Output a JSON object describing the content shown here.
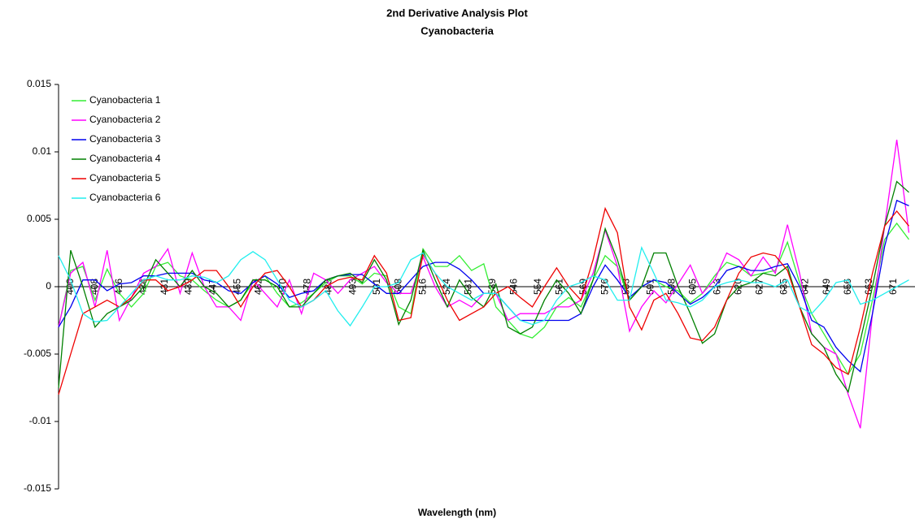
{
  "chart_data": {
    "type": "line",
    "title": "2nd Derivative Analysis Plot",
    "subtitle": "Cyanobacteria",
    "x_label": "Wavelength (nm)",
    "x": [
      396,
      400,
      404,
      408,
      412,
      416,
      420,
      424,
      428,
      432,
      436,
      440,
      444,
      448,
      452,
      456,
      460,
      464,
      468,
      472,
      476,
      480,
      484,
      488,
      492,
      496,
      500,
      504,
      508,
      512,
      516,
      520,
      524,
      528,
      532,
      536,
      540,
      544,
      548,
      552,
      556,
      560,
      564,
      568,
      572,
      576,
      580,
      584,
      588,
      592,
      596,
      600,
      604,
      608,
      612,
      616,
      620,
      624,
      628,
      632,
      636,
      640,
      644,
      648,
      652,
      656,
      660,
      664,
      668,
      672,
      676
    ],
    "xlim": [
      396,
      678
    ],
    "xticks": [
      400,
      408,
      416,
      424,
      431,
      439,
      447,
      455,
      462,
      470,
      478,
      485,
      493,
      501,
      508,
      516,
      524,
      531,
      539,
      546,
      554,
      561,
      569,
      576,
      583,
      591,
      598,
      605,
      613,
      620,
      627,
      635,
      642,
      649,
      656,
      663,
      671
    ],
    "ylim": [
      -0.015,
      0.015
    ],
    "yticks": [
      0.015,
      0.01,
      0.005,
      0,
      -0.005,
      -0.01,
      -0.015
    ],
    "legend": "upper left",
    "series": [
      {
        "name": "Cyanobacteria 1",
        "color": "#33ee33",
        "values": [
          -0.003,
          0.0012,
          0.0015,
          -0.001,
          0.0013,
          -0.0005,
          -0.0015,
          -0.0005,
          0.0015,
          0.0018,
          0.0008,
          0.0005,
          -0.0003,
          -0.001,
          -0.0015,
          -0.001,
          0.0003,
          0.0008,
          -0.0005,
          -0.0015,
          -0.0012,
          -0.0005,
          0.0003,
          0.0008,
          0.0008,
          0.0002,
          0.001,
          0.0008,
          -0.0015,
          -0.002,
          0.0028,
          0.0015,
          0.0015,
          0.0023,
          0.0012,
          0.0017,
          -0.0015,
          -0.0025,
          -0.0035,
          -0.0038,
          -0.003,
          -0.0015,
          -0.0008,
          -0.0015,
          0.0005,
          0.0023,
          0.0015,
          -0.001,
          0,
          0.0005,
          0,
          -0.0003,
          -0.0012,
          -0.0005,
          0.0008,
          0.0018,
          0.0015,
          0.0008,
          0.001,
          0.0012,
          0.0033,
          0.0003,
          -0.002,
          -0.0035,
          -0.005,
          -0.0065,
          -0.005,
          -0.001,
          0.0035,
          0.0047,
          0.0035
        ]
      },
      {
        "name": "Cyanobacteria 2",
        "color": "#ff00ff",
        "values": [
          -0.003,
          0.001,
          0.0018,
          -0.0015,
          0.0027,
          -0.0025,
          -0.0008,
          0.001,
          0.0015,
          0.0028,
          -0.0005,
          0.0025,
          0,
          -0.0015,
          -0.0015,
          -0.0025,
          0.0005,
          -0.0005,
          -0.0015,
          0.0005,
          -0.002,
          0.001,
          0.0005,
          -0.0005,
          0.0005,
          0.001,
          0.0015,
          0.0003,
          -0.0005,
          -0.0005,
          0.0022,
          0,
          -0.0015,
          -0.001,
          -0.0015,
          -0.0005,
          -0.0005,
          -0.0025,
          -0.002,
          -0.002,
          -0.002,
          -0.0015,
          -0.0015,
          -0.001,
          0.001,
          0.0042,
          0.0015,
          -0.0033,
          -0.0015,
          -0.0003,
          -0.0012,
          0.0002,
          0.0016,
          -0.0005,
          0.0005,
          0.0025,
          0.002,
          0.0008,
          0.0022,
          0.001,
          0.0046,
          0.001,
          -0.0035,
          -0.0045,
          -0.005,
          -0.008,
          -0.0105,
          -0.002,
          0.0045,
          0.0109,
          0.004
        ]
      },
      {
        "name": "Cyanobacteria 3",
        "color": "#0000ee",
        "values": [
          -0.003,
          -0.0015,
          0.0005,
          0.0005,
          -0.0003,
          0.0002,
          0.0003,
          0.0008,
          0.0008,
          0.001,
          0.001,
          0.001,
          0.0005,
          0.0003,
          -0.0003,
          -0.0005,
          0.0003,
          0.0008,
          0.0002,
          -0.0008,
          -0.0005,
          -0.0003,
          0.0005,
          0.0008,
          0.0009,
          0.0009,
          0.0002,
          -0.0005,
          -0.0005,
          0.0005,
          0.0015,
          0.0018,
          0.0018,
          0.0013,
          0.0005,
          -0.0005,
          -0.0005,
          -0.0015,
          -0.0025,
          -0.0025,
          -0.0025,
          -0.0025,
          -0.0025,
          -0.002,
          0,
          0.0016,
          0.0005,
          -0.0008,
          0,
          0.0005,
          0.0003,
          -0.0005,
          -0.0013,
          -0.0008,
          0,
          0.0012,
          0.0015,
          0.0012,
          0.0012,
          0.0015,
          0.0017,
          0,
          -0.0025,
          -0.003,
          -0.0045,
          -0.0055,
          -0.0063,
          -0.002,
          0.003,
          0.0064,
          0.006
        ]
      },
      {
        "name": "Cyanobacteria 4",
        "color": "#008000",
        "values": [
          -0.0075,
          0.0027,
          0,
          -0.003,
          -0.002,
          -0.0015,
          -0.001,
          0,
          0.002,
          0.001,
          0,
          0.0012,
          0,
          -0.0005,
          -0.0015,
          -0.001,
          0.0005,
          0.0005,
          0,
          -0.0015,
          -0.0015,
          -0.0005,
          0.0005,
          0.0008,
          0.001,
          0.0003,
          0.002,
          0.0005,
          -0.0028,
          -0.001,
          0.0027,
          0.0005,
          -0.0015,
          0.0005,
          -0.0008,
          -0.0015,
          0.0002,
          -0.003,
          -0.0035,
          -0.003,
          -0.001,
          0.0005,
          -0.0005,
          -0.002,
          0.0005,
          0.0043,
          0.002,
          -0.001,
          0,
          0.0025,
          0.0025,
          0,
          -0.002,
          -0.0042,
          -0.0035,
          -0.001,
          0,
          0.0003,
          0.001,
          0.0008,
          0.0015,
          -0.0015,
          -0.0035,
          -0.0045,
          -0.0065,
          -0.0078,
          -0.004,
          0,
          0.0045,
          0.0078,
          0.007
        ]
      },
      {
        "name": "Cyanobacteria 5",
        "color": "#ee0000",
        "values": [
          -0.008,
          -0.005,
          -0.002,
          -0.0015,
          -0.001,
          -0.0015,
          -0.0008,
          0.0005,
          0.0005,
          -0.0003,
          0,
          0.0005,
          0.0012,
          0.0012,
          0,
          -0.0015,
          0,
          0.001,
          0.0012,
          0,
          -0.0015,
          -0.001,
          0,
          0.0005,
          0.0007,
          0.0005,
          0.0023,
          0.001,
          -0.0025,
          -0.0023,
          0.0024,
          0.001,
          -0.001,
          -0.0025,
          -0.002,
          -0.0015,
          -0.0005,
          0,
          -0.0008,
          -0.0015,
          0,
          0.0014,
          0,
          -0.001,
          0.002,
          0.0058,
          0.004,
          -0.0015,
          -0.0032,
          -0.001,
          -0.0005,
          -0.002,
          -0.0038,
          -0.004,
          -0.003,
          -0.001,
          0.001,
          0.0022,
          0.0025,
          0.0023,
          0.0012,
          -0.0015,
          -0.0043,
          -0.005,
          -0.006,
          -0.0065,
          -0.003,
          0.001,
          0.0045,
          0.0056,
          0.0045
        ]
      },
      {
        "name": "Cyanobacteria 6",
        "color": "#22eeee",
        "values": [
          0.0023,
          0.0005,
          -0.002,
          -0.0026,
          -0.0025,
          -0.0015,
          -0.0005,
          0.0005,
          0.0008,
          0.0005,
          0.0005,
          0.0008,
          0.0007,
          0.0003,
          0.0008,
          0.002,
          0.0026,
          0.002,
          0.0005,
          -0.001,
          -0.0015,
          -0.001,
          -0.0003,
          -0.0018,
          -0.0029,
          -0.0015,
          0,
          0,
          0.0003,
          0.002,
          0.0025,
          0.001,
          0,
          -0.0005,
          -0.001,
          -0.0005,
          -0.0005,
          -0.0015,
          -0.0025,
          -0.0028,
          -0.0025,
          -0.001,
          0,
          0.0003,
          0.0008,
          0.0005,
          -0.001,
          -0.001,
          0.0029,
          0.001,
          -0.001,
          -0.0012,
          -0.0015,
          -0.001,
          0,
          0.0003,
          0.0005,
          0.0003,
          0.0003,
          0,
          0.0005,
          -0.0015,
          -0.002,
          -0.001,
          0.0003,
          0.0005,
          -0.0013,
          -0.001,
          -0.0005,
          0,
          0.0005
        ]
      }
    ]
  }
}
